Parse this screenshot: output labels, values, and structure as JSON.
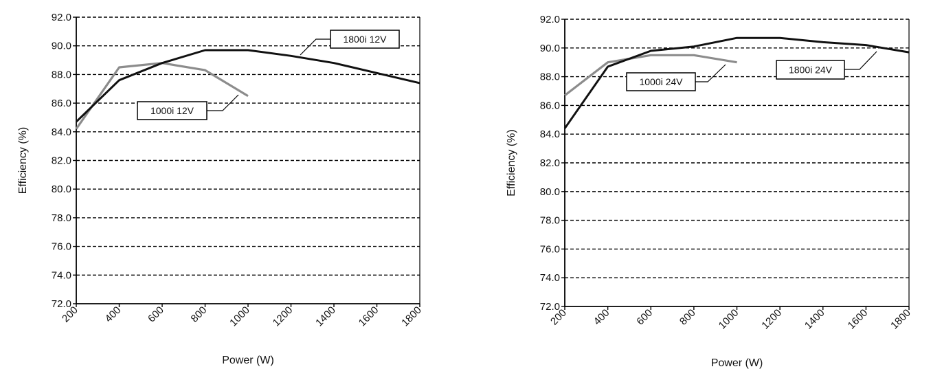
{
  "colors": {
    "series_dark": "#111111",
    "series_light": "#8c8c8c",
    "grid": "#000000",
    "background": "#ffffff"
  },
  "chart_data": [
    {
      "type": "line",
      "xlabel": "Power (W)",
      "ylabel": "Efficiency (%)",
      "xlim": [
        200,
        1800
      ],
      "ylim": [
        72.0,
        92.0
      ],
      "xticks": [
        "200",
        "400",
        "600",
        "800",
        "1000",
        "1200",
        "1400",
        "1600",
        "1800"
      ],
      "yticks": [
        "72.0",
        "74.0",
        "76.0",
        "78.0",
        "80.0",
        "82.0",
        "84.0",
        "86.0",
        "88.0",
        "90.0",
        "92.0"
      ],
      "grid": "horizontal dashed",
      "series": [
        {
          "name": "1800i 12V",
          "color": "#111111",
          "x": [
            200,
            400,
            600,
            800,
            1000,
            1200,
            1400,
            1600,
            1800
          ],
          "y": [
            84.7,
            87.6,
            88.8,
            89.7,
            89.7,
            89.3,
            88.8,
            88.1,
            87.4
          ]
        },
        {
          "name": "1000i 12V",
          "color": "#8c8c8c",
          "x": [
            200,
            400,
            600,
            800,
            1000
          ],
          "y": [
            84.2,
            88.5,
            88.8,
            88.3,
            86.5
          ]
        }
      ]
    },
    {
      "type": "line",
      "xlabel": "Power (W)",
      "ylabel": "Efficiency (%)",
      "xlim": [
        200,
        1800
      ],
      "ylim": [
        72.0,
        92.0
      ],
      "xticks": [
        "200",
        "400",
        "600",
        "800",
        "1000",
        "1200",
        "1400",
        "1600",
        "1800"
      ],
      "yticks": [
        "72.0",
        "74.0",
        "76.0",
        "78.0",
        "80.0",
        "82.0",
        "84.0",
        "86.0",
        "88.0",
        "90.0",
        "92.0"
      ],
      "grid": "horizontal dashed",
      "series": [
        {
          "name": "1800i 24V",
          "color": "#111111",
          "x": [
            200,
            400,
            600,
            800,
            1000,
            1200,
            1400,
            1600,
            1800
          ],
          "y": [
            84.4,
            88.7,
            89.8,
            90.1,
            90.7,
            90.7,
            90.4,
            90.2,
            89.7
          ]
        },
        {
          "name": "1000i 24V",
          "color": "#8c8c8c",
          "x": [
            200,
            400,
            600,
            800,
            1000
          ],
          "y": [
            86.7,
            89.0,
            89.5,
            89.5,
            89.0
          ]
        }
      ]
    }
  ]
}
